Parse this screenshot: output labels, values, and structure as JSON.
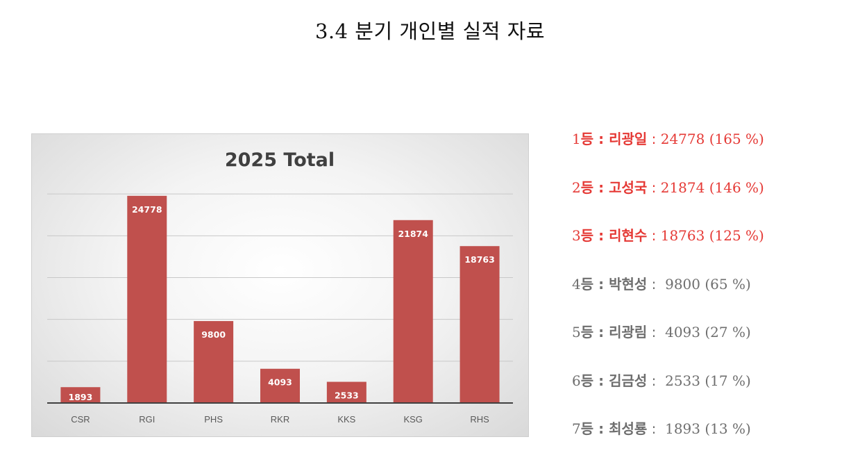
{
  "page": {
    "title": "3.4 분기 개인별 실적 자료"
  },
  "colors": {
    "bar": "#c0504d",
    "top_rank_text": "#e53935",
    "other_rank_text": "#6e6e6e",
    "axis_line": "#404040",
    "grid": "#c8c8c8"
  },
  "chart_data": {
    "type": "bar",
    "title": "2025 Total",
    "xlabel": "",
    "ylabel": "",
    "categories": [
      "CSR",
      "RGI",
      "PHS",
      "RKR",
      "KKS",
      "KSG",
      "RHS"
    ],
    "values": [
      1893,
      24778,
      9800,
      4093,
      2533,
      21874,
      18763
    ],
    "data_labels": [
      "1893",
      "24778",
      "9800",
      "4093",
      "2533",
      "21874",
      "18763"
    ],
    "ylim": [
      0,
      30000
    ],
    "grid": true,
    "legend": "none"
  },
  "ranking": [
    {
      "rank": "1",
      "suffix": "등",
      "sep": " : ",
      "name": "리광일",
      "sep2": " : ",
      "value": "24778",
      "pct": " (165 %)",
      "highlight": true
    },
    {
      "rank": "2",
      "suffix": "등",
      "sep": " : ",
      "name": "고성국",
      "sep2": " : ",
      "value": "21874",
      "pct": " (146 %)",
      "highlight": true
    },
    {
      "rank": "3",
      "suffix": "등",
      "sep": " : ",
      "name": "리현수",
      "sep2": " : ",
      "value": "18763",
      "pct": " (125 %)",
      "highlight": true
    },
    {
      "rank": "4",
      "suffix": "등",
      "sep": " : ",
      "name": "박현성",
      "sep2": " :  ",
      "value": "9800",
      "pct": " (65 %)",
      "highlight": false
    },
    {
      "rank": "5",
      "suffix": "등",
      "sep": " : ",
      "name": "리광림",
      "sep2": " :  ",
      "value": "4093",
      "pct": " (27 %)",
      "highlight": false
    },
    {
      "rank": "6",
      "suffix": "등",
      "sep": " : ",
      "name": "김금성",
      "sep2": " :  ",
      "value": "2533",
      "pct": " (17 %)",
      "highlight": false
    },
    {
      "rank": "7",
      "suffix": "등",
      "sep": " : ",
      "name": "최성룡",
      "sep2": " :  ",
      "value": "1893",
      "pct": " (13 %)",
      "highlight": false
    }
  ]
}
